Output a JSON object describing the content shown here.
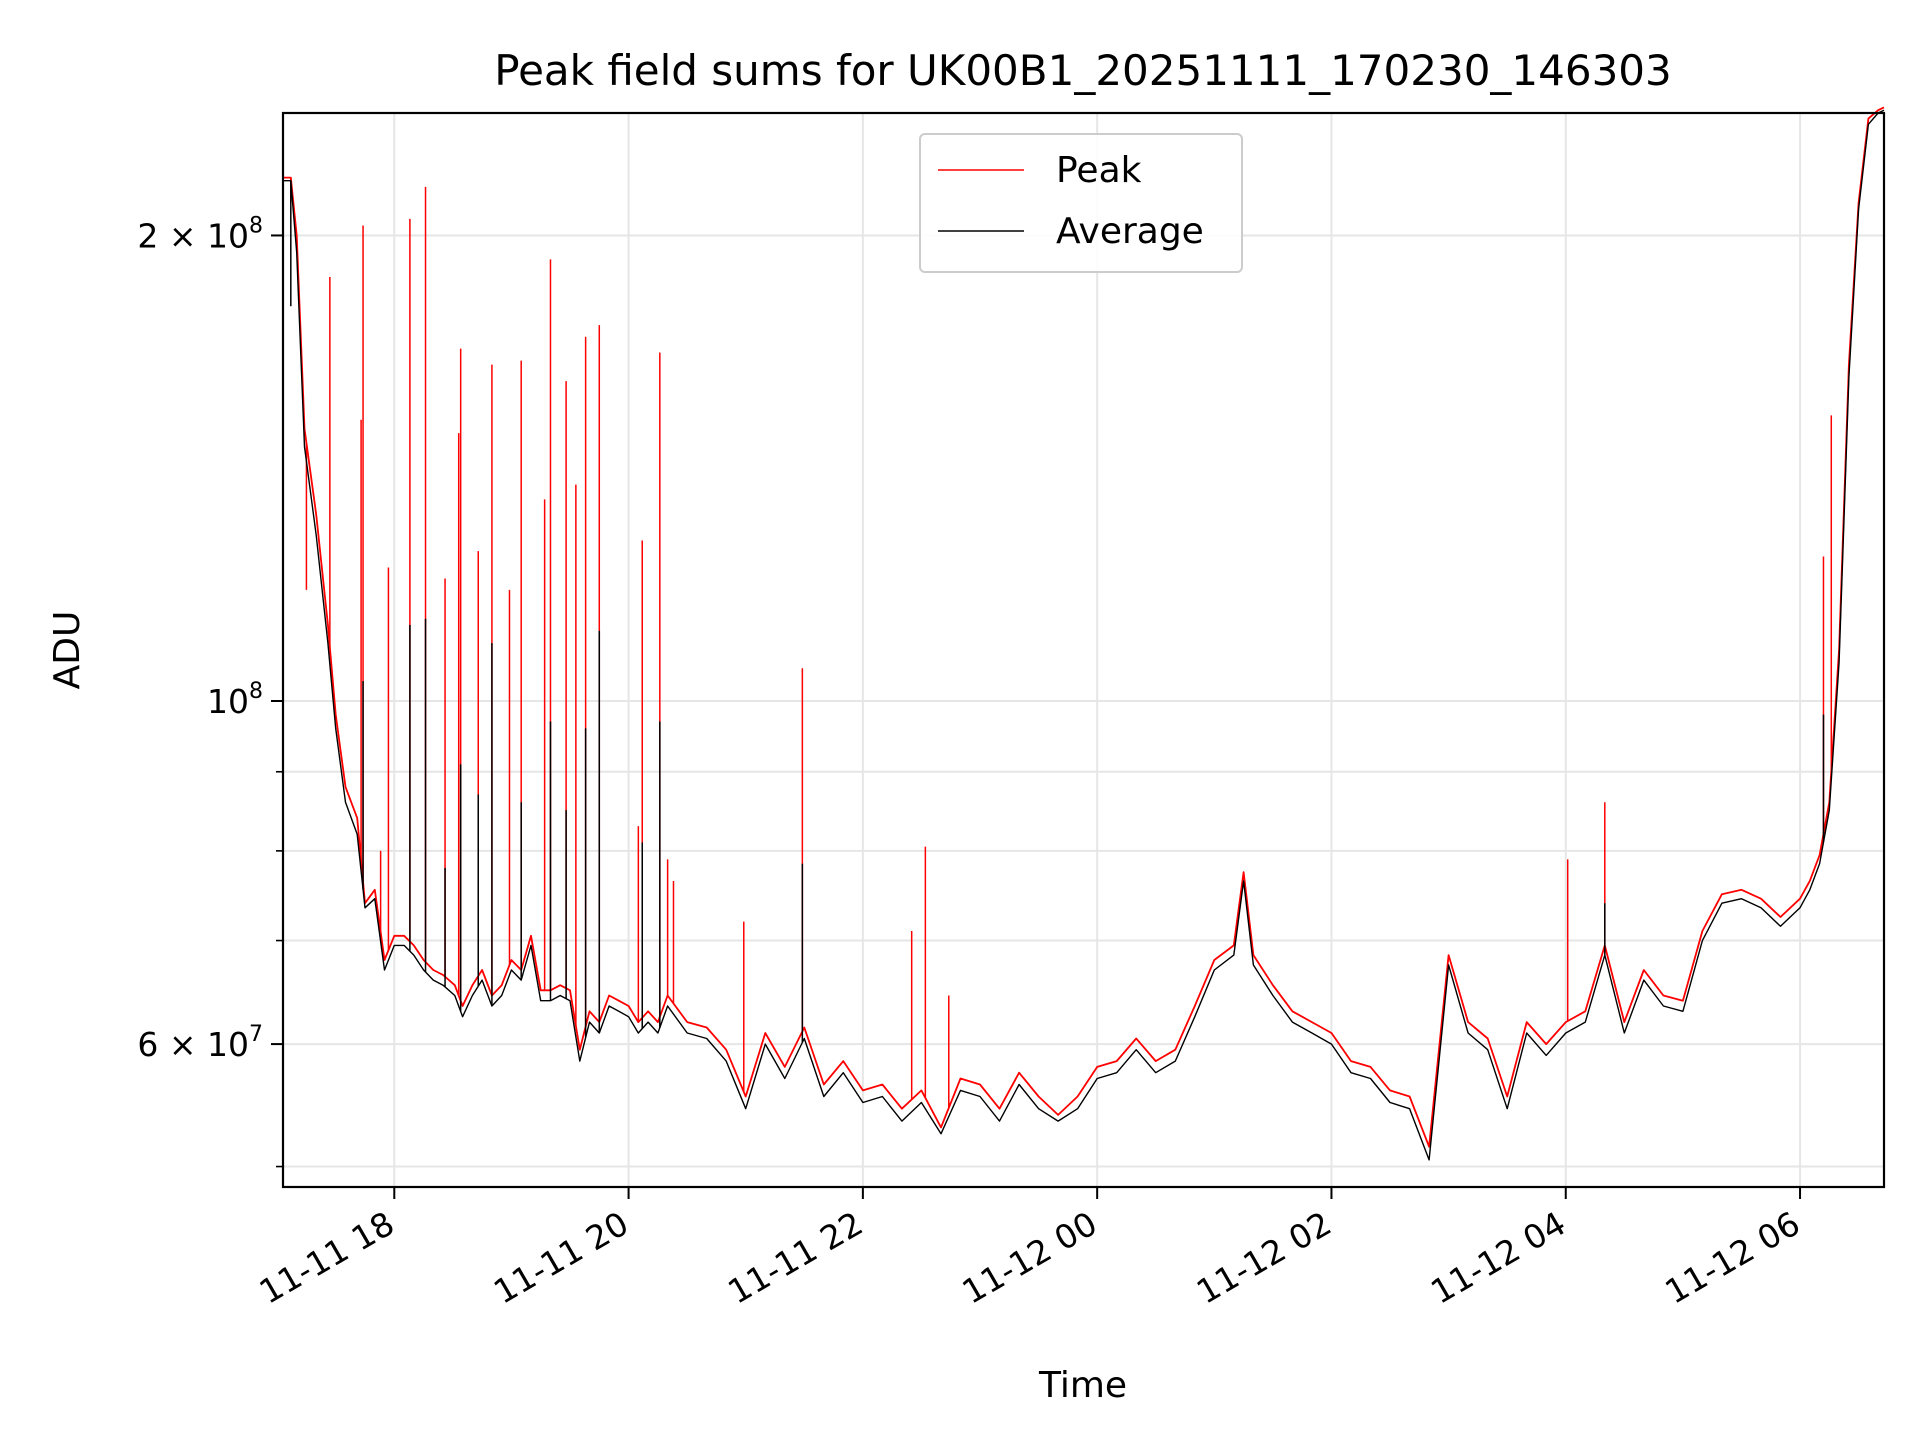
{
  "chart_data": {
    "type": "line",
    "title": "Peak field sums for UK00B1_20251111_170230_146303",
    "xlabel": "Time",
    "ylabel": "ADU",
    "yscale": "log",
    "xlim": [
      "2025-11-11 17:03",
      "2025-11-12 06:43"
    ],
    "ylim": [
      48500000,
      240000000
    ],
    "grid": true,
    "legend_position": "top-center",
    "x_ticks": [
      "11-11 18",
      "11-11 20",
      "11-11 22",
      "11-12 00",
      "11-12 02",
      "11-12 04",
      "11-12 06"
    ],
    "x_tick_times": [
      "2025-11-11 18:00",
      "2025-11-11 20:00",
      "2025-11-11 22:00",
      "2025-11-12 00:00",
      "2025-11-12 02:00",
      "2025-11-12 04:00",
      "2025-11-12 06:00"
    ],
    "y_ticks": [
      {
        "value": 200000000,
        "mantissa": "2",
        "exponent": "8"
      },
      {
        "value": 100000000,
        "mantissa": "",
        "exponent": "8"
      },
      {
        "value": 60000000,
        "mantissa": "6",
        "exponent": "7"
      }
    ],
    "y_minor_ticks": [
      50000000,
      70000000,
      80000000,
      90000000
    ],
    "series": [
      {
        "name": "Peak",
        "color": "#ff0000",
        "x": [
          "2025-11-11 17:03",
          "2025-11-11 17:07",
          "2025-11-11 17:10",
          "2025-11-11 17:14",
          "2025-11-11 17:20",
          "2025-11-11 17:26",
          "2025-11-11 17:30",
          "2025-11-11 17:35",
          "2025-11-11 17:41",
          "2025-11-11 17:45",
          "2025-11-11 17:50",
          "2025-11-11 17:55",
          "2025-11-11 18:00",
          "2025-11-11 18:05",
          "2025-11-11 18:10",
          "2025-11-11 18:15",
          "2025-11-11 18:20",
          "2025-11-11 18:25",
          "2025-11-11 18:31",
          "2025-11-11 18:35",
          "2025-11-11 18:40",
          "2025-11-11 18:45",
          "2025-11-11 18:50",
          "2025-11-11 18:55",
          "2025-11-11 19:00",
          "2025-11-11 19:05",
          "2025-11-11 19:10",
          "2025-11-11 19:15",
          "2025-11-11 19:20",
          "2025-11-11 19:25",
          "2025-11-11 19:30",
          "2025-11-11 19:35",
          "2025-11-11 19:40",
          "2025-11-11 19:45",
          "2025-11-11 19:50",
          "2025-11-11 19:55",
          "2025-11-11 20:00",
          "2025-11-11 20:05",
          "2025-11-11 20:10",
          "2025-11-11 20:15",
          "2025-11-11 20:20",
          "2025-11-11 20:30",
          "2025-11-11 20:40",
          "2025-11-11 20:50",
          "2025-11-11 21:00",
          "2025-11-11 21:10",
          "2025-11-11 21:20",
          "2025-11-11 21:30",
          "2025-11-11 21:40",
          "2025-11-11 21:50",
          "2025-11-11 22:00",
          "2025-11-11 22:10",
          "2025-11-11 22:20",
          "2025-11-11 22:30",
          "2025-11-11 22:40",
          "2025-11-11 22:50",
          "2025-11-11 23:00",
          "2025-11-11 23:10",
          "2025-11-11 23:20",
          "2025-11-11 23:30",
          "2025-11-11 23:40",
          "2025-11-11 23:50",
          "2025-11-12 00:00",
          "2025-11-12 00:10",
          "2025-11-12 00:20",
          "2025-11-12 00:30",
          "2025-11-12 00:40",
          "2025-11-12 00:50",
          "2025-11-12 01:00",
          "2025-11-12 01:10",
          "2025-11-12 01:15",
          "2025-11-12 01:20",
          "2025-11-12 01:30",
          "2025-11-12 01:40",
          "2025-11-12 01:50",
          "2025-11-12 02:00",
          "2025-11-12 02:10",
          "2025-11-12 02:20",
          "2025-11-12 02:30",
          "2025-11-12 02:40",
          "2025-11-12 02:50",
          "2025-11-12 03:00",
          "2025-11-12 03:10",
          "2025-11-12 03:20",
          "2025-11-12 03:30",
          "2025-11-12 03:40",
          "2025-11-12 03:50",
          "2025-11-12 04:00",
          "2025-11-12 04:10",
          "2025-11-12 04:20",
          "2025-11-12 04:30",
          "2025-11-12 04:40",
          "2025-11-12 04:50",
          "2025-11-12 05:00",
          "2025-11-12 05:10",
          "2025-11-12 05:20",
          "2025-11-12 05:30",
          "2025-11-12 05:40",
          "2025-11-12 05:50",
          "2025-11-12 06:00",
          "2025-11-12 06:05",
          "2025-11-12 06:10",
          "2025-11-12 06:15",
          "2025-11-12 06:20",
          "2025-11-12 06:25",
          "2025-11-12 06:30",
          "2025-11-12 06:35",
          "2025-11-12 06:40",
          "2025-11-12 06:43"
        ],
        "values": [
          218000000,
          218000000,
          200000000,
          150000000,
          132000000,
          112000000,
          98000000,
          88000000,
          84000000,
          74000000,
          75500000,
          68000000,
          70500000,
          70500000,
          69500000,
          68000000,
          67000000,
          66500000,
          65500000,
          63500000,
          65500000,
          67000000,
          64500000,
          65500000,
          68000000,
          67000000,
          70500000,
          65000000,
          65000000,
          65500000,
          65000000,
          59500000,
          63000000,
          62000000,
          64500000,
          64000000,
          63500000,
          62000000,
          63000000,
          62000000,
          64500000,
          62000000,
          61500000,
          59500000,
          55500000,
          61000000,
          58000000,
          61500000,
          56500000,
          58500000,
          56000000,
          56500000,
          54500000,
          56000000,
          53000000,
          57000000,
          56500000,
          54500000,
          57500000,
          55500000,
          54000000,
          55500000,
          58000000,
          58500000,
          60500000,
          58500000,
          59500000,
          63500000,
          68000000,
          69500000,
          77500000,
          68500000,
          65500000,
          63000000,
          62000000,
          61000000,
          58500000,
          58000000,
          56000000,
          55500000,
          51500000,
          68500000,
          62000000,
          60500000,
          55500000,
          62000000,
          60000000,
          62000000,
          63000000,
          69500000,
          62000000,
          67000000,
          64500000,
          64000000,
          71000000,
          75000000,
          75500000,
          74500000,
          72500000,
          74500000,
          76500000,
          79500000,
          86000000,
          108000000,
          165000000,
          210000000,
          238000000,
          241000000,
          242000000
        ],
        "spikes": [
          {
            "x": "2025-11-11 17:07",
            "value": 210000000
          },
          {
            "x": "2025-11-11 17:15",
            "value": 118000000
          },
          {
            "x": "2025-11-11 17:27",
            "value": 188000000
          },
          {
            "x": "2025-11-11 17:43",
            "value": 152000000
          },
          {
            "x": "2025-11-11 17:44",
            "value": 203000000
          },
          {
            "x": "2025-11-11 17:53",
            "value": 80000000
          },
          {
            "x": "2025-11-11 17:57",
            "value": 122000000
          },
          {
            "x": "2025-11-11 18:08",
            "value": 205000000
          },
          {
            "x": "2025-11-11 18:16",
            "value": 215000000
          },
          {
            "x": "2025-11-11 18:26",
            "value": 120000000
          },
          {
            "x": "2025-11-11 18:33",
            "value": 149000000
          },
          {
            "x": "2025-11-11 18:34",
            "value": 169000000
          },
          {
            "x": "2025-11-11 18:43",
            "value": 125000000
          },
          {
            "x": "2025-11-11 18:50",
            "value": 165000000
          },
          {
            "x": "2025-11-11 18:59",
            "value": 118000000
          },
          {
            "x": "2025-11-11 19:05",
            "value": 166000000
          },
          {
            "x": "2025-11-11 19:17",
            "value": 135000000
          },
          {
            "x": "2025-11-11 19:20",
            "value": 193000000
          },
          {
            "x": "2025-11-11 19:28",
            "value": 161000000
          },
          {
            "x": "2025-11-11 19:33",
            "value": 138000000
          },
          {
            "x": "2025-11-11 19:38",
            "value": 172000000
          },
          {
            "x": "2025-11-11 19:45",
            "value": 175000000
          },
          {
            "x": "2025-11-11 20:05",
            "value": 83000000
          },
          {
            "x": "2025-11-11 20:07",
            "value": 127000000
          },
          {
            "x": "2025-11-11 20:16",
            "value": 168000000
          },
          {
            "x": "2025-11-11 20:20",
            "value": 79000000
          },
          {
            "x": "2025-11-11 20:23",
            "value": 76500000
          },
          {
            "x": "2025-11-11 20:59",
            "value": 72000000
          },
          {
            "x": "2025-11-11 21:29",
            "value": 105000000
          },
          {
            "x": "2025-11-11 22:25",
            "value": 71000000
          },
          {
            "x": "2025-11-11 22:32",
            "value": 80500000
          },
          {
            "x": "2025-11-11 22:44",
            "value": 64500000
          },
          {
            "x": "2025-11-12 04:01",
            "value": 79000000
          },
          {
            "x": "2025-11-12 04:20",
            "value": 86000000
          },
          {
            "x": "2025-11-12 06:12",
            "value": 124000000
          },
          {
            "x": "2025-11-12 06:16",
            "value": 153000000
          }
        ]
      },
      {
        "name": "Average",
        "color": "#000000",
        "x": [
          "2025-11-11 17:03",
          "2025-11-11 17:07",
          "2025-11-11 17:10",
          "2025-11-11 17:14",
          "2025-11-11 17:20",
          "2025-11-11 17:26",
          "2025-11-11 17:30",
          "2025-11-11 17:35",
          "2025-11-11 17:41",
          "2025-11-11 17:45",
          "2025-11-11 17:50",
          "2025-11-11 17:55",
          "2025-11-11 18:00",
          "2025-11-11 18:05",
          "2025-11-11 18:10",
          "2025-11-11 18:15",
          "2025-11-11 18:20",
          "2025-11-11 18:25",
          "2025-11-11 18:31",
          "2025-11-11 18:35",
          "2025-11-11 18:40",
          "2025-11-11 18:45",
          "2025-11-11 18:50",
          "2025-11-11 18:55",
          "2025-11-11 19:00",
          "2025-11-11 19:05",
          "2025-11-11 19:10",
          "2025-11-11 19:15",
          "2025-11-11 19:20",
          "2025-11-11 19:25",
          "2025-11-11 19:30",
          "2025-11-11 19:35",
          "2025-11-11 19:40",
          "2025-11-11 19:45",
          "2025-11-11 19:50",
          "2025-11-11 19:55",
          "2025-11-11 20:00",
          "2025-11-11 20:05",
          "2025-11-11 20:10",
          "2025-11-11 20:15",
          "2025-11-11 20:20",
          "2025-11-11 20:30",
          "2025-11-11 20:40",
          "2025-11-11 20:50",
          "2025-11-11 21:00",
          "2025-11-11 21:10",
          "2025-11-11 21:20",
          "2025-11-11 21:30",
          "2025-11-11 21:40",
          "2025-11-11 21:50",
          "2025-11-11 22:00",
          "2025-11-11 22:10",
          "2025-11-11 22:20",
          "2025-11-11 22:30",
          "2025-11-11 22:40",
          "2025-11-11 22:50",
          "2025-11-11 23:00",
          "2025-11-11 23:10",
          "2025-11-11 23:20",
          "2025-11-11 23:30",
          "2025-11-11 23:40",
          "2025-11-11 23:50",
          "2025-11-12 00:00",
          "2025-11-12 00:10",
          "2025-11-12 00:20",
          "2025-11-12 00:30",
          "2025-11-12 00:40",
          "2025-11-12 00:50",
          "2025-11-12 01:00",
          "2025-11-12 01:10",
          "2025-11-12 01:15",
          "2025-11-12 01:20",
          "2025-11-12 01:30",
          "2025-11-12 01:40",
          "2025-11-12 01:50",
          "2025-11-12 02:00",
          "2025-11-12 02:10",
          "2025-11-12 02:20",
          "2025-11-12 02:30",
          "2025-11-12 02:40",
          "2025-11-12 02:50",
          "2025-11-12 03:00",
          "2025-11-12 03:10",
          "2025-11-12 03:20",
          "2025-11-12 03:30",
          "2025-11-12 03:40",
          "2025-11-12 03:50",
          "2025-11-12 04:00",
          "2025-11-12 04:10",
          "2025-11-12 04:20",
          "2025-11-12 04:30",
          "2025-11-12 04:40",
          "2025-11-12 04:50",
          "2025-11-12 05:00",
          "2025-11-12 05:10",
          "2025-11-12 05:20",
          "2025-11-12 05:30",
          "2025-11-12 05:40",
          "2025-11-12 05:50",
          "2025-11-12 06:00",
          "2025-11-12 06:05",
          "2025-11-12 06:10",
          "2025-11-12 06:15",
          "2025-11-12 06:20",
          "2025-11-12 06:25",
          "2025-11-12 06:30",
          "2025-11-12 06:35",
          "2025-11-12 06:40",
          "2025-11-12 06:43"
        ],
        "values": [
          217000000,
          217000000,
          195000000,
          146000000,
          128000000,
          109000000,
          96000000,
          86000000,
          82000000,
          73500000,
          74500000,
          67000000,
          69500000,
          69500000,
          68500000,
          67000000,
          66000000,
          65500000,
          64500000,
          62500000,
          64500000,
          66000000,
          63500000,
          64500000,
          67000000,
          66000000,
          69500000,
          64000000,
          64000000,
          64500000,
          64000000,
          58500000,
          62000000,
          61000000,
          63500000,
          63000000,
          62500000,
          61000000,
          62000000,
          61000000,
          63500000,
          61000000,
          60500000,
          58500000,
          54500000,
          60000000,
          57000000,
          60500000,
          55500000,
          57500000,
          55000000,
          55500000,
          53500000,
          55000000,
          52500000,
          56000000,
          55500000,
          53500000,
          56500000,
          54500000,
          53500000,
          54500000,
          57000000,
          57500000,
          59500000,
          57500000,
          58500000,
          62500000,
          67000000,
          68500000,
          76500000,
          67500000,
          64500000,
          62000000,
          61000000,
          60000000,
          57500000,
          57000000,
          55000000,
          54500000,
          50500000,
          67500000,
          61000000,
          59500000,
          54500000,
          61000000,
          59000000,
          61000000,
          62000000,
          68500000,
          61000000,
          66000000,
          63500000,
          63000000,
          70000000,
          74000000,
          74500000,
          73500000,
          71500000,
          73500000,
          75500000,
          78500000,
          85000000,
          106000000,
          162000000,
          208000000,
          236000000,
          240000000,
          241000000
        ],
        "spikes": [
          {
            "x": "2025-11-11 17:07",
            "value": 180000000
          },
          {
            "x": "2025-11-11 17:44",
            "value": 103000000
          },
          {
            "x": "2025-11-11 18:08",
            "value": 112000000
          },
          {
            "x": "2025-11-11 18:16",
            "value": 113000000
          },
          {
            "x": "2025-11-11 18:26",
            "value": 78000000
          },
          {
            "x": "2025-11-11 18:34",
            "value": 91000000
          },
          {
            "x": "2025-11-11 18:43",
            "value": 87000000
          },
          {
            "x": "2025-11-11 18:50",
            "value": 109000000
          },
          {
            "x": "2025-11-11 19:05",
            "value": 86000000
          },
          {
            "x": "2025-11-11 19:20",
            "value": 97000000
          },
          {
            "x": "2025-11-11 19:28",
            "value": 85000000
          },
          {
            "x": "2025-11-11 19:38",
            "value": 96000000
          },
          {
            "x": "2025-11-11 19:45",
            "value": 111000000
          },
          {
            "x": "2025-11-11 20:07",
            "value": 81000000
          },
          {
            "x": "2025-11-11 20:16",
            "value": 97000000
          },
          {
            "x": "2025-11-11 21:29",
            "value": 78500000
          },
          {
            "x": "2025-11-12 04:20",
            "value": 74000000
          },
          {
            "x": "2025-11-12 06:12",
            "value": 98000000
          }
        ]
      }
    ]
  }
}
